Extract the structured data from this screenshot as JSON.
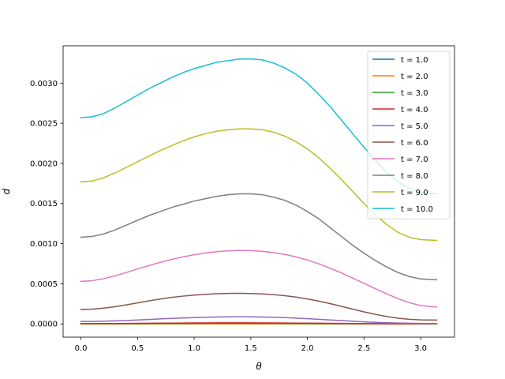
{
  "chart_data": {
    "type": "line",
    "title": "",
    "xlabel": "θ",
    "ylabel": "d",
    "xlim": [
      -0.157,
      3.299
    ],
    "ylim": [
      -0.000165,
      0.003465
    ],
    "xticks": [
      0.0,
      0.5,
      1.0,
      1.5,
      2.0,
      2.5,
      3.0
    ],
    "xtick_labels": [
      "0.0",
      "0.5",
      "1.0",
      "1.5",
      "2.0",
      "2.5",
      "3.0"
    ],
    "yticks": [
      0.0,
      0.0005,
      0.001,
      0.0015,
      0.002,
      0.0025,
      0.003
    ],
    "ytick_labels": [
      "0.0000",
      "0.0005",
      "0.0010",
      "0.0015",
      "0.0020",
      "0.0025",
      "0.0030"
    ],
    "grid": false,
    "legend_position": "top-right",
    "x": [
      0.0,
      0.1,
      0.2,
      0.3,
      0.4,
      0.5,
      0.6,
      0.7,
      0.8,
      0.9,
      1.0,
      1.1,
      1.2,
      1.3,
      1.4,
      1.5,
      1.6,
      1.7,
      1.8,
      1.9,
      2.0,
      2.1,
      2.2,
      2.3,
      2.4,
      2.5,
      2.6,
      2.7,
      2.8,
      2.9,
      3.0,
      3.1416
    ],
    "series": [
      {
        "name": "t = 1.0",
        "values": [
          0.0,
          0.0,
          0.0,
          0.0,
          0.0,
          0.0,
          0.0,
          0.0,
          0.0,
          0.0,
          0.0,
          0.0,
          0.0,
          0.0,
          0.0,
          0.0,
          0.0,
          0.0,
          0.0,
          0.0,
          0.0,
          0.0,
          0.0,
          0.0,
          0.0,
          0.0,
          0.0,
          0.0,
          0.0,
          0.0,
          0.0,
          0.0
        ]
      },
      {
        "name": "t = 2.0",
        "values": [
          0.0,
          0.0,
          0.0,
          0.0,
          0.0,
          0.0,
          0.0,
          0.0,
          0.0,
          0.0,
          0.0,
          0.0,
          0.0,
          0.0,
          0.0,
          0.0,
          0.0,
          0.0,
          0.0,
          0.0,
          0.0,
          0.0,
          0.0,
          0.0,
          0.0,
          0.0,
          0.0,
          0.0,
          0.0,
          0.0,
          0.0,
          0.0
        ]
      },
      {
        "name": "t = 3.0",
        "values": [
          2e-06,
          2e-06,
          2e-06,
          3e-06,
          3e-06,
          4e-06,
          4e-06,
          5e-06,
          5e-06,
          5e-06,
          6e-06,
          6e-06,
          6e-06,
          6e-06,
          6e-06,
          6e-06,
          6e-06,
          6e-06,
          5e-06,
          5e-06,
          4e-06,
          4e-06,
          3e-06,
          3e-06,
          2e-06,
          2e-06,
          1e-06,
          1e-06,
          1e-06,
          0.0,
          0.0,
          0.0
        ]
      },
      {
        "name": "t = 4.0",
        "values": [
          4e-06,
          4e-06,
          5e-06,
          5e-06,
          6e-06,
          7e-06,
          8e-06,
          9e-06,
          1e-05,
          1.1e-05,
          1.2e-05,
          1.2e-05,
          1.3e-05,
          1.3e-05,
          1.3e-05,
          1.3e-05,
          1.2e-05,
          1.2e-05,
          1.1e-05,
          1e-05,
          9e-06,
          8e-06,
          7e-06,
          6e-06,
          5e-06,
          4e-06,
          3e-06,
          2e-06,
          2e-06,
          1e-06,
          1e-06,
          1e-06
        ]
      },
      {
        "name": "t = 5.0",
        "values": [
          3e-05,
          3.1e-05,
          3.4e-05,
          3.8e-05,
          4.3e-05,
          4.9e-05,
          5.5e-05,
          6.2e-05,
          6.8e-05,
          7.4e-05,
          7.9e-05,
          8.3e-05,
          8.6e-05,
          8.8e-05,
          8.9e-05,
          8.8e-05,
          8.6e-05,
          8.3e-05,
          7.8e-05,
          7.2e-05,
          6.5e-05,
          5.7e-05,
          4.9e-05,
          4.1e-05,
          3.3e-05,
          2.6e-05,
          2e-05,
          1.5e-05,
          1.1e-05,
          8e-06,
          6e-06,
          5e-06
        ]
      },
      {
        "name": "t = 6.0",
        "values": [
          0.00018,
          0.000184,
          0.000196,
          0.000214,
          0.000237,
          0.000262,
          0.000287,
          0.00031,
          0.00033,
          0.000346,
          0.000359,
          0.000369,
          0.000376,
          0.00038,
          0.000381,
          0.000379,
          0.000374,
          0.000365,
          0.000352,
          0.000334,
          0.000311,
          0.000284,
          0.000253,
          0.000219,
          0.000184,
          0.00015,
          0.000119,
          9.2e-05,
          7.1e-05,
          5.7e-05,
          5e-05,
          4.8e-05
        ]
      },
      {
        "name": "t = 7.0",
        "values": [
          0.00053,
          0.000539,
          0.000563,
          0.000598,
          0.00064,
          0.000684,
          0.000727,
          0.000767,
          0.000803,
          0.000835,
          0.000862,
          0.000884,
          0.0009,
          0.000911,
          0.000916,
          0.000914,
          0.000905,
          0.000889,
          0.000866,
          0.000835,
          0.000796,
          0.000749,
          0.000695,
          0.000635,
          0.000571,
          0.000505,
          0.000439,
          0.000374,
          0.000315,
          0.000265,
          0.000228,
          0.00021
        ]
      },
      {
        "name": "t = 8.0",
        "values": [
          0.00108,
          0.00109,
          0.00112,
          0.00117,
          0.00123,
          0.00129,
          0.00135,
          0.0014,
          0.00145,
          0.00149,
          0.00153,
          0.00156,
          0.00159,
          0.00161,
          0.00162,
          0.00162,
          0.00161,
          0.00158,
          0.00154,
          0.00148,
          0.0014,
          0.00131,
          0.0012,
          0.00109,
          0.00098,
          0.00088,
          0.00079,
          0.00071,
          0.00064,
          0.00059,
          0.00056,
          0.00055
        ]
      },
      {
        "name": "t = 9.0",
        "values": [
          0.00177,
          0.00178,
          0.00182,
          0.00188,
          0.00195,
          0.00202,
          0.00209,
          0.00216,
          0.00222,
          0.00228,
          0.00233,
          0.00237,
          0.0024,
          0.00242,
          0.00243,
          0.00243,
          0.00242,
          0.00239,
          0.00234,
          0.00227,
          0.00218,
          0.00207,
          0.00194,
          0.0018,
          0.00165,
          0.0015,
          0.00136,
          0.00124,
          0.00114,
          0.00108,
          0.00105,
          0.00104
        ]
      },
      {
        "name": "t = 10.0",
        "values": [
          0.00257,
          0.00258,
          0.00262,
          0.00269,
          0.00277,
          0.00285,
          0.00293,
          0.003,
          0.00307,
          0.00313,
          0.00318,
          0.00322,
          0.00326,
          0.00328,
          0.0033,
          0.0033,
          0.00329,
          0.00325,
          0.00319,
          0.00311,
          0.003,
          0.00286,
          0.00271,
          0.00254,
          0.00237,
          0.0022,
          0.00204,
          0.00189,
          0.00177,
          0.00169,
          0.00164,
          0.00162
        ]
      }
    ],
    "colors": [
      "#1f77b4",
      "#ff7f0e",
      "#2ca02c",
      "#d62728",
      "#9467bd",
      "#8c564b",
      "#e377c2",
      "#7f7f7f",
      "#bcbd22",
      "#17becf"
    ]
  }
}
